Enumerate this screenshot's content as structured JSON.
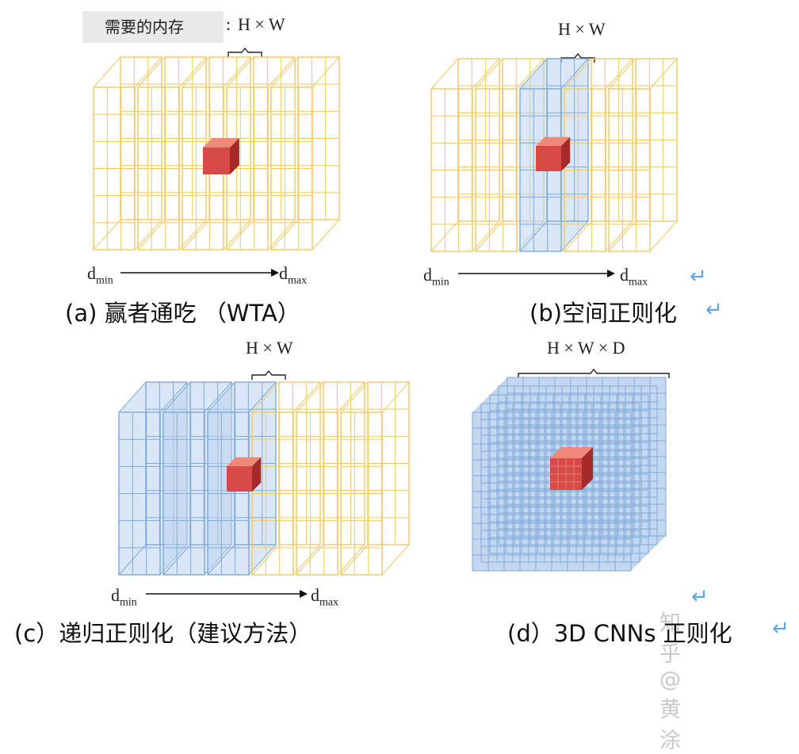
{
  "panel_a": {
    "memory_label": "需要的内存",
    "colon": ":",
    "dim_label": "H × W",
    "axis_start": "d",
    "axis_start_sub": "min",
    "axis_end": "d",
    "axis_end_sub": "max",
    "caption": "(a)   赢者通吃   （WTA）"
  },
  "panel_b": {
    "dim_label": "H × W",
    "axis_start": "d",
    "axis_start_sub": "min",
    "axis_end": "d",
    "axis_end_sub": "max",
    "caption": "(b)空间正则化"
  },
  "panel_c": {
    "dim_label": "H × W",
    "axis_start": "d",
    "axis_start_sub": "min",
    "axis_end": "d",
    "axis_end_sub": "max",
    "caption": "(c）递归正则化（建议方法）"
  },
  "panel_d": {
    "dim_label": "H × W × D",
    "caption": "(d）3D CNNs  正则化"
  },
  "watermark": "知乎 @黄涂",
  "return_glyph": "↵",
  "colors": {
    "grid_yellow": "#f2c862",
    "grid_blue": "#7fa9d8",
    "fill_blue": "#bcd3ee",
    "cell_red": "#d84a48",
    "cell_red_dark": "#a52a2a",
    "cell_red_light": "#f08878",
    "return_blue": "#5aa6e6"
  },
  "icons": [
    "cost-volume-grid-icon",
    "highlight-cell-icon",
    "arrow-right-icon",
    "return-arrow-icon",
    "bracket-icon"
  ]
}
